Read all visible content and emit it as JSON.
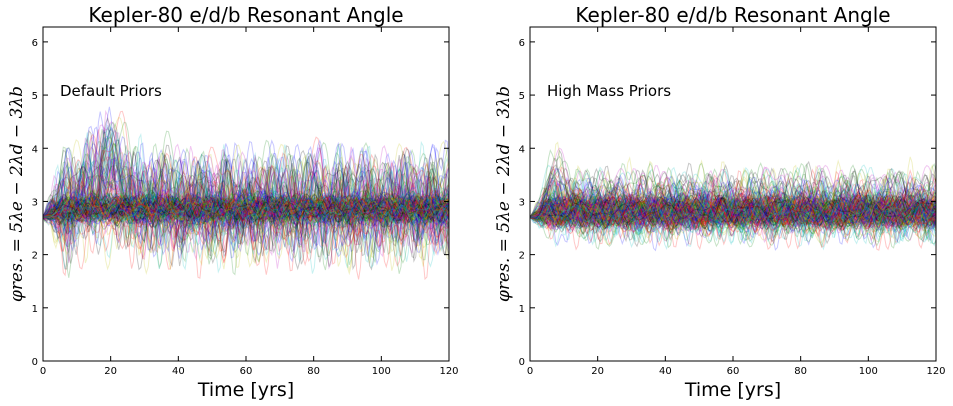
{
  "chart_data": [
    {
      "type": "line",
      "title": "Kepler-80 e/d/b Resonant Angle",
      "xlabel": "Time [yrs]",
      "ylabel": "φres. = 5λe − 2λd − 3λb",
      "annotation": "Default Priors",
      "xlim": [
        0,
        120
      ],
      "ylim": [
        0,
        6.28
      ],
      "xticks": [
        0,
        20,
        40,
        60,
        80,
        100,
        120
      ],
      "yticks": [
        0,
        1,
        2,
        3,
        4,
        5,
        6
      ],
      "grid": false,
      "series_count_estimate": 200,
      "series_summary": {
        "start_value": 2.7,
        "core_mean": 2.85,
        "core_band": [
          2.5,
          3.2
        ],
        "excursion_band": [
          2.0,
          4.3
        ],
        "early_bump": {
          "x_range": [
            8,
            30
          ],
          "peak": 3.7
        }
      },
      "series_colors": [
        "#0000ff",
        "#008000",
        "#ff0000",
        "#00bfbf",
        "#bf00bf",
        "#bfbf00",
        "#000000"
      ]
    },
    {
      "type": "line",
      "title": "Kepler-80 e/d/b Resonant Angle",
      "xlabel": "Time [yrs]",
      "ylabel": "φres. = 5λe − 2λd − 3λb",
      "annotation": "High Mass Priors",
      "xlim": [
        0,
        120
      ],
      "ylim": [
        0,
        6.28
      ],
      "xticks": [
        0,
        20,
        40,
        60,
        80,
        100,
        120
      ],
      "yticks": [
        0,
        1,
        2,
        3,
        4,
        5,
        6
      ],
      "grid": false,
      "series_count_estimate": 200,
      "series_summary": {
        "start_value": 2.7,
        "core_mean": 2.8,
        "core_band": [
          2.4,
          3.2
        ],
        "excursion_band": [
          2.3,
          3.7
        ],
        "early_bump": {
          "x_range": [
            3,
            12
          ],
          "peak": 3.2
        }
      },
      "series_colors": [
        "#0000ff",
        "#008000",
        "#ff0000",
        "#00bfbf",
        "#bf00bf",
        "#bfbf00",
        "#000000"
      ]
    }
  ]
}
